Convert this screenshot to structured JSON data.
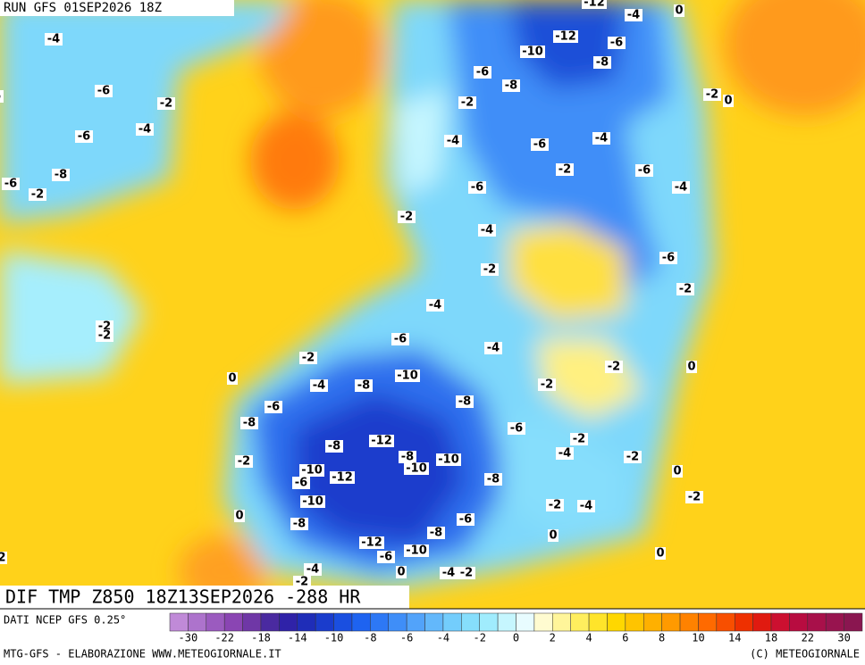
{
  "header": {
    "run": "RUN GFS 01SEP2026 18Z"
  },
  "map": {
    "title": "DIF TMP Z850 18Z13SEP2026 -288 HR",
    "contour_labels": [
      -4,
      -6,
      -6,
      -2,
      -4,
      -6,
      -8,
      -6,
      -2,
      -12,
      -4,
      0,
      -12,
      -6,
      -10,
      -8,
      -6,
      -8,
      -2,
      0,
      -2,
      -4,
      -6,
      -4,
      -2,
      -6,
      -6,
      -4,
      -2,
      -4,
      -6,
      -2,
      -2,
      -4,
      -2,
      -2,
      -6,
      -4,
      -2,
      -2,
      0,
      0,
      -10,
      -4,
      -8,
      -2,
      -8,
      -6,
      -8,
      -6,
      -2,
      -12,
      -8,
      -4,
      -8,
      -10,
      -2,
      -2,
      -10,
      -10,
      0,
      -12,
      -6,
      -8,
      -2,
      -10,
      -2,
      -4,
      0,
      -6,
      -8,
      -8,
      0,
      -12,
      -10,
      -6,
      0,
      -4,
      0,
      -4,
      -2,
      -2,
      2
    ]
  },
  "colorbar": {
    "source": "DATI NCEP GFS 0.25°",
    "colors": [
      "#c08ad8",
      "#ad73cc",
      "#9b5bbf",
      "#8a45b3",
      "#6f37a6",
      "#4a2aa0",
      "#2f22a8",
      "#1f2db8",
      "#1a3ccc",
      "#1a4fe0",
      "#1e63f0",
      "#2d78f5",
      "#3f8ef8",
      "#52a3fa",
      "#63b8fb",
      "#73cdfc",
      "#86defc",
      "#a0ecfd",
      "#c6f6fe",
      "#e8fcff",
      "#fffbd0",
      "#fff59a",
      "#ffee5e",
      "#ffe42a",
      "#ffd700",
      "#ffc400",
      "#ffb000",
      "#ff9a00",
      "#ff8200",
      "#ff6a00",
      "#f84f00",
      "#ee3000",
      "#e01a10",
      "#cc1030",
      "#b80c40",
      "#a8104a",
      "#98144f",
      "#8a1650"
    ],
    "ticks": [
      -30,
      -22,
      -18,
      -14,
      -10,
      -8,
      -6,
      -4,
      -2,
      0,
      2,
      4,
      6,
      8,
      10,
      14,
      18,
      22,
      30
    ]
  },
  "footer": {
    "left": "MTG-GFS - ELABORAZIONE WWW.METEOGIORNALE.IT",
    "right": "(C) METEOGIORNALE"
  }
}
